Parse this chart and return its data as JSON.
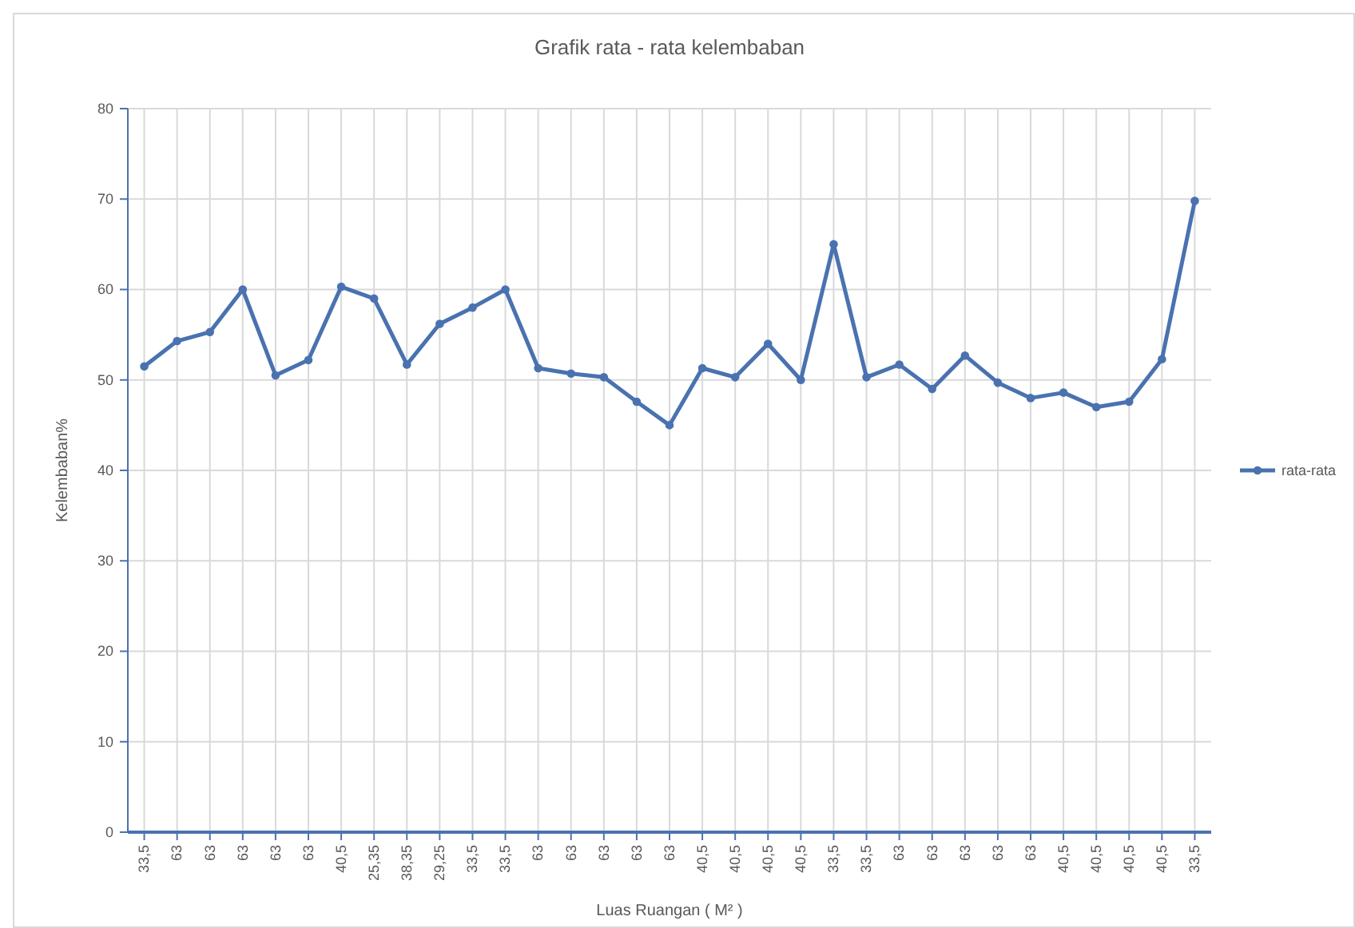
{
  "chart_data": {
    "type": "line",
    "title": "Grafik rata - rata kelembaban",
    "xlabel": "Luas Ruangan ( M² )",
    "ylabel": "Kelembaban%",
    "categories": [
      "33,5",
      "63",
      "63",
      "63",
      "63",
      "63",
      "40,5",
      "25,35",
      "38,35",
      "29,25",
      "33,5",
      "33,5",
      "63",
      "63",
      "63",
      "63",
      "63",
      "40,5",
      "40,5",
      "40,5",
      "40,5",
      "33,5",
      "33,5",
      "63",
      "63",
      "63",
      "63",
      "63",
      "40,5",
      "40,5",
      "40,5",
      "40,5",
      "33,5"
    ],
    "series": [
      {
        "name": "rata-rata",
        "color": "#4a72b0",
        "values": [
          51.5,
          54.3,
          55.3,
          60,
          50.5,
          52.2,
          60.3,
          59,
          51.7,
          56.2,
          58,
          60,
          51.3,
          50.7,
          50.3,
          47.6,
          45,
          51.3,
          50.3,
          54,
          50,
          65,
          50.3,
          51.7,
          49,
          52.7,
          49.7,
          48,
          48.6,
          47,
          47.6,
          52.3,
          69.8
        ]
      }
    ],
    "ylim": [
      0,
      80
    ],
    "yticks": [
      0,
      10,
      20,
      30,
      40,
      50,
      60,
      70,
      80
    ],
    "grid": true,
    "legend": "right",
    "marker": "circle",
    "line_style": "solid"
  }
}
